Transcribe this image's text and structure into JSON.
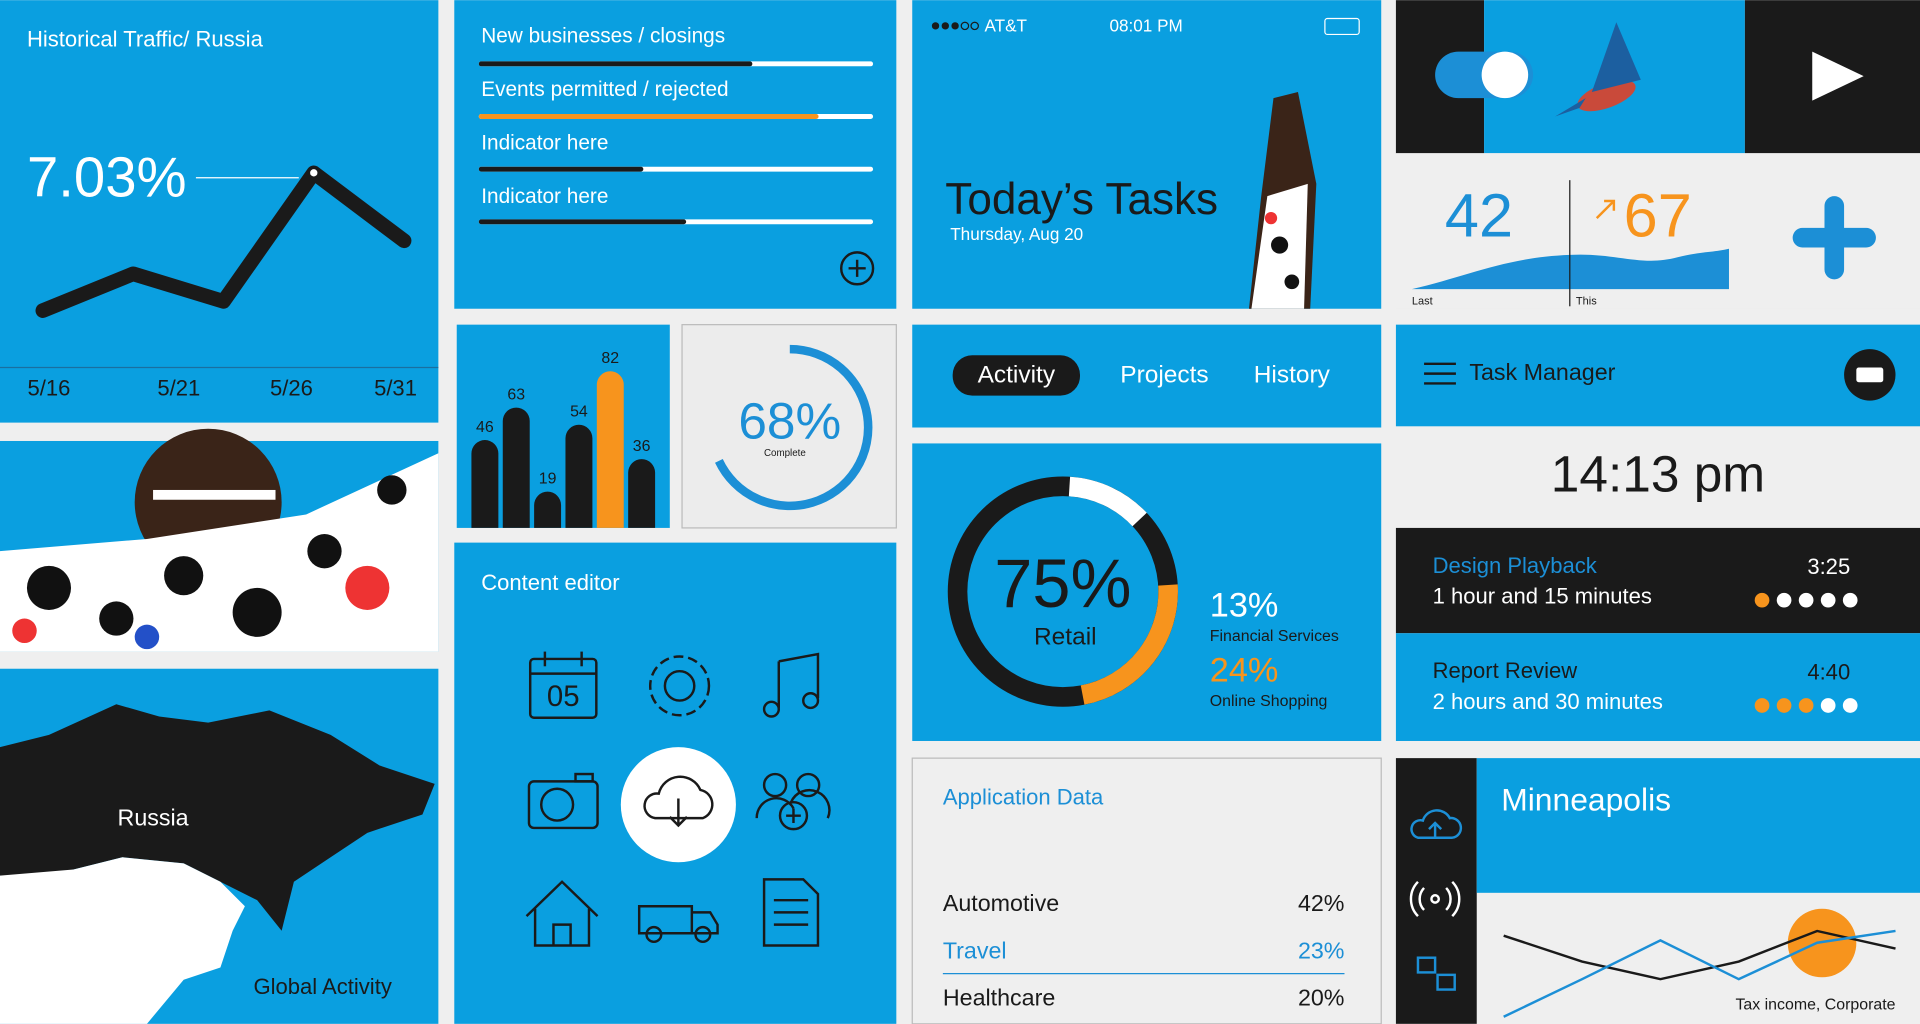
{
  "traffic": {
    "title": "Historical Traffic/ Russia",
    "headline": "7.03%",
    "x_labels": [
      "5/16",
      "5/21",
      "5/26",
      "5/31"
    ],
    "values": [
      11,
      31,
      16,
      86,
      49
    ],
    "ylim": [
      0,
      100
    ]
  },
  "indicators": {
    "range": [
      0,
      100
    ],
    "items": [
      {
        "label": "New businesses / closings",
        "value": 69,
        "color": "#1a1a1a"
      },
      {
        "label": "Events permitted / rejected",
        "value": 86,
        "color": "#f7941d"
      },
      {
        "label": "Indicator here",
        "value": 41,
        "color": "#1a1a1a"
      },
      {
        "label": "Indicator here",
        "value": 52,
        "color": "#1a1a1a"
      }
    ]
  },
  "phone": {
    "carrier": "AT&T",
    "time": "08:01 PM",
    "title": "Today’s Tasks",
    "date": "Thursday, Aug 20"
  },
  "stats": {
    "last": {
      "value": 42,
      "label": "Last"
    },
    "this": {
      "value": 67,
      "label": "This"
    }
  },
  "bars": {
    "values": [
      46,
      63,
      19,
      54,
      82,
      36
    ],
    "colors": [
      "#1a1a1a",
      "#1a1a1a",
      "#1a1a1a",
      "#1a1a1a",
      "#f7941d",
      "#1a1a1a"
    ],
    "ylim": [
      0,
      100
    ]
  },
  "progress": {
    "value": 68,
    "label": "68%",
    "caption": "Complete"
  },
  "tabs": {
    "items": [
      "Activity",
      "Projects",
      "History"
    ]
  },
  "tasks": {
    "title": "Task Manager",
    "clock": "14:13 pm",
    "items": [
      {
        "name": "Design Playback",
        "duration": "1 hour and 15 minutes",
        "time": "3:25",
        "done": 1,
        "total": 5
      },
      {
        "name": "Report Review",
        "duration": "2 hours and 30 minutes",
        "time": "4:40",
        "done": 3,
        "total": 5
      }
    ]
  },
  "sectors": {
    "main": {
      "value": 75,
      "label": "75%",
      "name": "Retail"
    },
    "others": [
      {
        "value": 13,
        "label": "13%",
        "name": "Financial Services",
        "color": "#ffffff"
      },
      {
        "value": 24,
        "label": "24%",
        "name": "Online Shopping",
        "color": "#f7941d"
      }
    ]
  },
  "content_editor": {
    "title": "Content editor",
    "calendar_day": "05"
  },
  "map": {
    "country": "Russia",
    "caption": "Global Activity"
  },
  "app_data": {
    "title": "Application Data",
    "rows": [
      [
        "Automotive",
        "42%"
      ],
      [
        "Travel",
        "23%"
      ],
      [
        "Healthcare",
        "20%"
      ]
    ]
  },
  "city": {
    "name": "Minneapolis",
    "caption": "Tax income, Corporate",
    "ylim": [
      0,
      100
    ],
    "series": [
      {
        "color": "#1a1a1a",
        "values": [
          75,
          53,
          38,
          53,
          79,
          64
        ]
      },
      {
        "color": "#1c8fd6",
        "values": [
          6,
          38,
          71,
          38,
          69,
          79
        ]
      }
    ]
  }
}
